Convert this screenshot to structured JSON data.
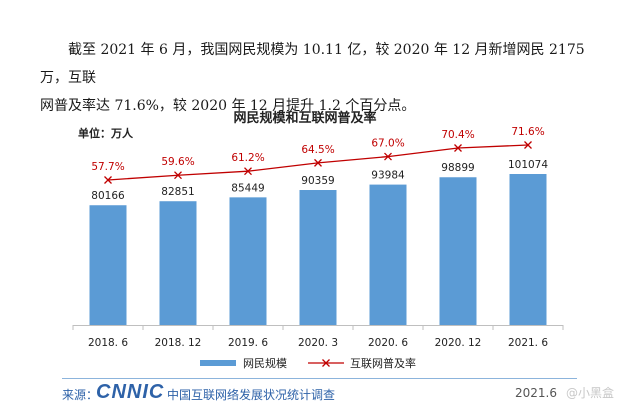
{
  "paragraph": {
    "line1": "截至 2021 年 6 月，我国网民规模为 10.11 亿，较 2020 年 12 月新增网民 2175 万，互联",
    "line2": "网普及率达 71.6%，较 2020 年 12 月提升 1.2 个百分点。"
  },
  "chart_data": {
    "type": "bar",
    "title": "网民规模和互联网普及率",
    "unit_label": "单位：万人",
    "categories": [
      "2018. 6",
      "2018. 12",
      "2019. 6",
      "2020. 3",
      "2020. 6",
      "2020. 12",
      "2021. 6"
    ],
    "series": [
      {
        "name": "网民规模",
        "type": "bar",
        "values": [
          80166,
          82851,
          85449,
          90359,
          93984,
          98899,
          101074
        ],
        "color": "#5b9bd5"
      },
      {
        "name": "互联网普及率",
        "type": "line",
        "values": [
          57.7,
          59.6,
          61.2,
          64.5,
          67.0,
          70.4,
          71.6
        ],
        "labels": [
          "57.7%",
          "59.6%",
          "61.2%",
          "64.5%",
          "67.0%",
          "70.4%",
          "71.6%"
        ],
        "color": "#c00000"
      }
    ],
    "legend_position": "bottom"
  },
  "footer": {
    "source_label": "来源：",
    "logo_text": "CNNIC",
    "org": "中国互联网络发展状况统计调查",
    "date": "2021.6"
  },
  "watermark": "@小黑盒",
  "colors": {
    "bar": "#5b9bd5",
    "line": "#c00000",
    "footer": "#2e62a8"
  }
}
